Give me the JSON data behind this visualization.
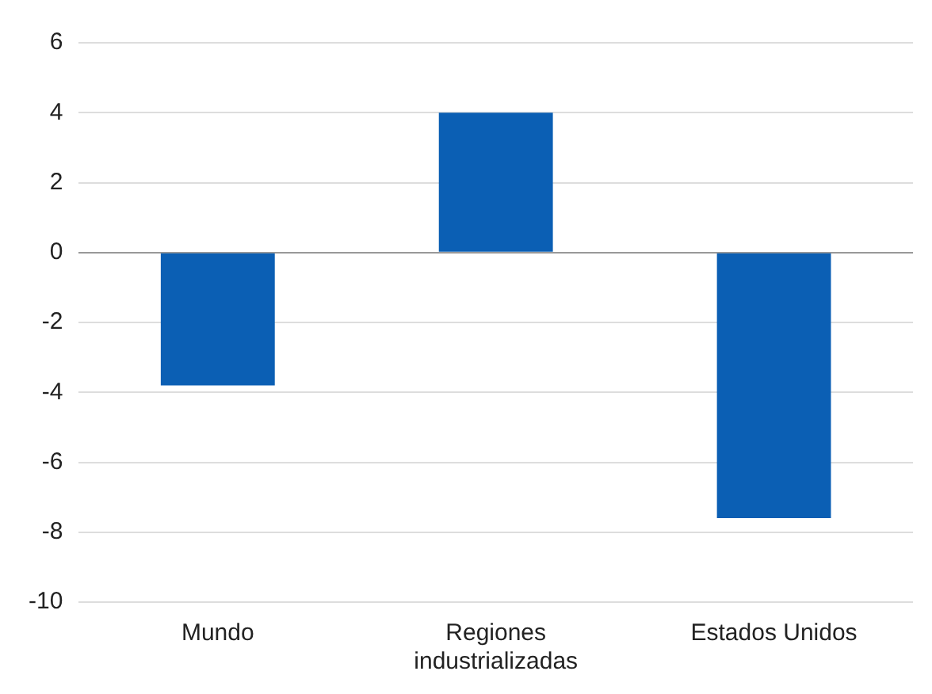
{
  "chart_data": {
    "type": "bar",
    "categories": [
      "Mundo",
      "Regiones industrializadas",
      "Estados Unidos"
    ],
    "values": [
      -3.8,
      4.0,
      -7.6
    ],
    "color": "#0b5fb4",
    "ylim": [
      -10,
      6
    ],
    "yticks": [
      -10,
      -8,
      -6,
      -4,
      -2,
      0,
      2,
      4,
      6
    ],
    "grid": "y"
  }
}
